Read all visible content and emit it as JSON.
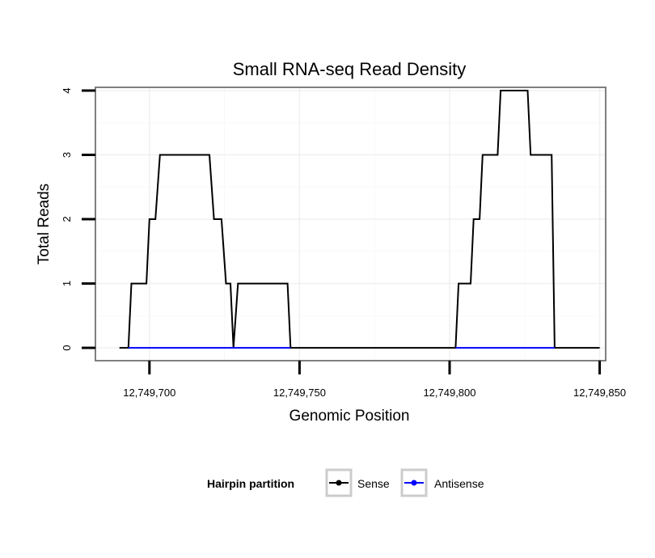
{
  "chart_data": {
    "type": "line",
    "title": "Small RNA-seq Read Density",
    "xlabel": "Genomic Position",
    "ylabel": "Total Reads",
    "xlim": [
      12749682,
      12749852
    ],
    "ylim": [
      -0.2,
      4.05
    ],
    "x_ticks": [
      {
        "value": 12749700,
        "label": "12,749,700"
      },
      {
        "value": 12749750,
        "label": "12,749,750"
      },
      {
        "value": 12749800,
        "label": "12,749,800"
      },
      {
        "value": 12749850,
        "label": "12,749,850"
      }
    ],
    "y_ticks": [
      {
        "value": 0,
        "label": "0"
      },
      {
        "value": 1,
        "label": "1"
      },
      {
        "value": 2,
        "label": "2"
      },
      {
        "value": 3,
        "label": "3"
      },
      {
        "value": 4,
        "label": "4"
      }
    ],
    "grid": true,
    "series": [
      {
        "name": "Sense",
        "color": "#000000",
        "points": [
          [
            12749690,
            0
          ],
          [
            12749693,
            0
          ],
          [
            12749694,
            1
          ],
          [
            12749699,
            1
          ],
          [
            12749700,
            2
          ],
          [
            12749702,
            2
          ],
          [
            12749703.5,
            3
          ],
          [
            12749720,
            3
          ],
          [
            12749721.5,
            2
          ],
          [
            12749724,
            2
          ],
          [
            12749725.5,
            1
          ],
          [
            12749727,
            1
          ],
          [
            12749728,
            0
          ],
          [
            12749729.5,
            1
          ],
          [
            12749746,
            1
          ],
          [
            12749747,
            0
          ],
          [
            12749802,
            0
          ],
          [
            12749803,
            1
          ],
          [
            12749807,
            1
          ],
          [
            12749808,
            2
          ],
          [
            12749810,
            2
          ],
          [
            12749811,
            3
          ],
          [
            12749816,
            3
          ],
          [
            12749817,
            4
          ],
          [
            12749826,
            4
          ],
          [
            12749827,
            3
          ],
          [
            12749834,
            3
          ],
          [
            12749835,
            0
          ],
          [
            12749850,
            0
          ]
        ]
      },
      {
        "name": "Antisense",
        "color": "#0000ff",
        "points": [
          [
            12749693,
            0
          ],
          [
            12749747,
            0
          ]
        ]
      },
      {
        "name": "Antisense",
        "color": "#0000ff",
        "points": [
          [
            12749802,
            0
          ],
          [
            12749835,
            0
          ]
        ]
      }
    ],
    "legend": {
      "title": "Hairpin partition",
      "position": "bottom",
      "entries": [
        {
          "label": "Sense",
          "color": "#000000"
        },
        {
          "label": "Antisense",
          "color": "#0000ff"
        }
      ]
    }
  }
}
